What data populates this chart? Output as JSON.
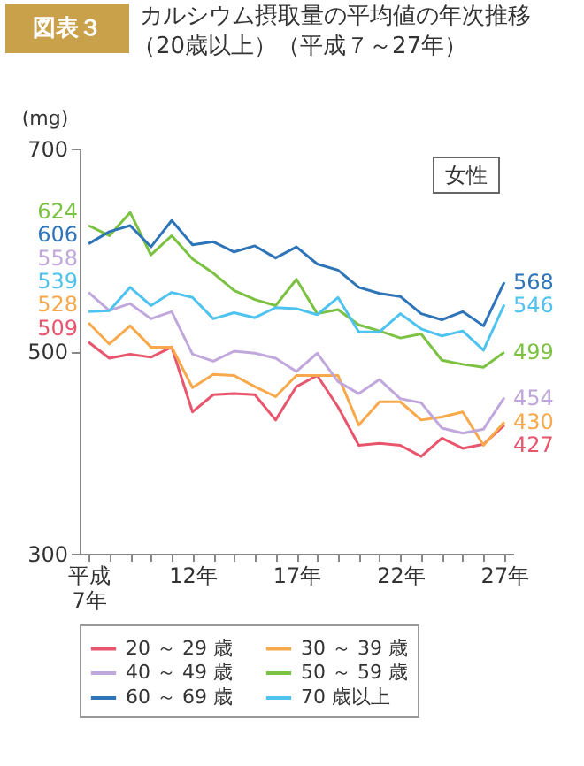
{
  "chart_data": {
    "type": "line",
    "title": "カルシウム摂取量の平均値の年次推移",
    "subtitle": "（20歳以上）（平成７～27年）",
    "ylabel": "(mg)",
    "annotations": [
      "図表３",
      "女性"
    ],
    "categories": [
      "平成\n7年",
      null,
      null,
      null,
      null,
      "12年",
      null,
      null,
      null,
      null,
      "17年",
      null,
      null,
      null,
      null,
      "22年",
      null,
      null,
      null,
      null,
      "27年"
    ],
    "ylim": [
      300,
      700
    ],
    "yticks": [
      300,
      500,
      700
    ],
    "grid": false,
    "legend": "bottom",
    "marker": "none",
    "line_style": "solid",
    "series": [
      {
        "name": "20 ～ 29 歳",
        "color": "#e8566e",
        "values": [
          509,
          493,
          497,
          494,
          504,
          440,
          457,
          458,
          457,
          432,
          465,
          476,
          445,
          407,
          409,
          407,
          396,
          414,
          404,
          408,
          427
        ],
        "value_labels": [
          "509",
          null,
          null,
          null,
          null,
          null,
          null,
          null,
          null,
          null,
          null,
          null,
          null,
          null,
          null,
          null,
          null,
          null,
          null,
          null,
          "427"
        ]
      },
      {
        "name": "30 ～ 39 歳",
        "color": "#f7a94b",
        "values": [
          528,
          507,
          525,
          504,
          504,
          464,
          477,
          476,
          465,
          455,
          476,
          476,
          476,
          427,
          450,
          450,
          432,
          435,
          440,
          407,
          430
        ],
        "value_labels": [
          "528",
          null,
          null,
          null,
          null,
          null,
          null,
          null,
          null,
          null,
          null,
          null,
          null,
          null,
          null,
          null,
          null,
          null,
          null,
          null,
          "430"
        ]
      },
      {
        "name": "40 ～ 49 歳",
        "color": "#c0a8dc",
        "values": [
          558,
          540,
          547,
          532,
          539,
          497,
          490,
          500,
          498,
          493,
          480,
          498,
          470,
          458,
          472,
          453,
          449,
          424,
          419,
          423,
          454
        ],
        "value_labels": [
          "558",
          null,
          null,
          null,
          null,
          null,
          null,
          null,
          null,
          null,
          null,
          null,
          null,
          null,
          null,
          null,
          null,
          null,
          null,
          null,
          "454"
        ]
      },
      {
        "name": "50 ～ 59 歳",
        "color": "#7cc242",
        "values": [
          624,
          614,
          637,
          595,
          614,
          591,
          577,
          560,
          551,
          545,
          571,
          537,
          541,
          526,
          520,
          513,
          517,
          491,
          487,
          484,
          499
        ],
        "value_labels": [
          "624",
          null,
          null,
          null,
          null,
          null,
          null,
          null,
          null,
          null,
          null,
          null,
          null,
          null,
          null,
          null,
          null,
          null,
          null,
          null,
          "499"
        ]
      },
      {
        "name": "60 ～ 69 歳",
        "color": "#2e74b8",
        "values": [
          606,
          618,
          624,
          603,
          629,
          605,
          608,
          598,
          604,
          592,
          603,
          586,
          580,
          563,
          557,
          554,
          537,
          531,
          539,
          525,
          568
        ],
        "value_labels": [
          "606",
          null,
          null,
          null,
          null,
          null,
          null,
          null,
          null,
          null,
          null,
          null,
          null,
          null,
          null,
          null,
          null,
          null,
          null,
          null,
          "568"
        ]
      },
      {
        "name": "70 歳以上",
        "color": "#4fc3f0",
        "values": [
          539,
          540,
          563,
          545,
          558,
          553,
          532,
          538,
          533,
          543,
          542,
          536,
          553,
          519,
          519,
          537,
          522,
          515,
          520,
          501,
          546
        ],
        "value_labels": [
          "539",
          null,
          null,
          null,
          null,
          null,
          null,
          null,
          null,
          null,
          null,
          null,
          null,
          null,
          null,
          null,
          null,
          null,
          null,
          null,
          "546"
        ]
      }
    ]
  }
}
